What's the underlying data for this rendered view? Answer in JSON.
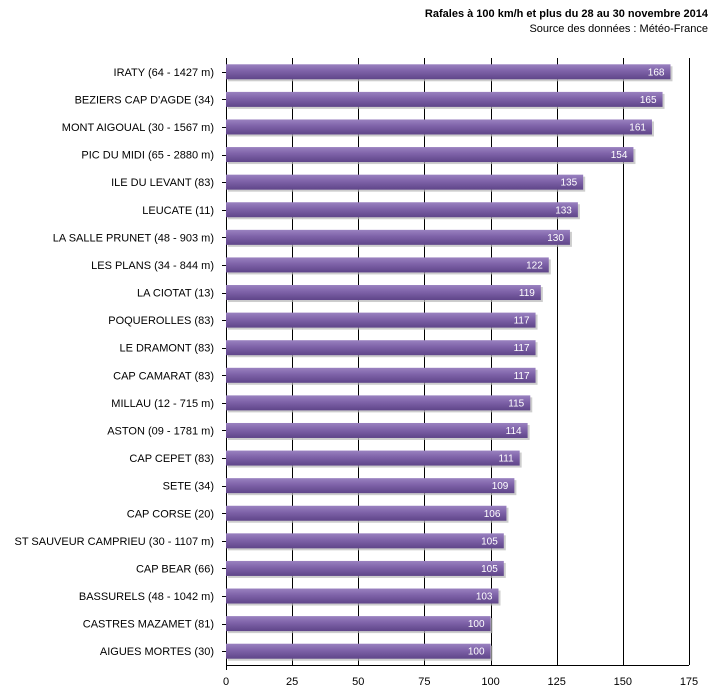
{
  "chart_data": {
    "type": "bar",
    "orientation": "horizontal",
    "title": "Rafales à 100 km/h et plus du 28 au 30 novembre 2014",
    "subtitle": "Source des données : Météo-France",
    "xlabel": "",
    "ylabel": "",
    "xlim": [
      0,
      175
    ],
    "ticks": [
      0,
      25,
      50,
      75,
      100,
      125,
      150,
      175
    ],
    "grid": true,
    "bar_color": "#7b5fa3",
    "categories": [
      "IRATY (64 - 1427 m)",
      "BEZIERS CAP D'AGDE (34)",
      "MONT AIGOUAL (30 - 1567 m)",
      "PIC DU MIDI (65 - 2880 m)",
      "ILE DU LEVANT (83)",
      "LEUCATE (11)",
      "LA SALLE PRUNET (48 - 903 m)",
      "LES PLANS (34 - 844 m)",
      "LA CIOTAT (13)",
      "POQUEROLLES (83)",
      "LE DRAMONT (83)",
      "CAP CAMARAT (83)",
      "MILLAU (12 - 715 m)",
      "ASTON (09 - 1781 m)",
      "CAP CEPET (83)",
      "SETE (34)",
      "CAP CORSE (20)",
      "ST SAUVEUR CAMPRIEU (30 - 1107 m)",
      "CAP BEAR (66)",
      "BASSURELS (48 - 1042 m)",
      "CASTRES MAZAMET (81)",
      "AIGUES MORTES (30)"
    ],
    "values": [
      168,
      165,
      161,
      154,
      135,
      133,
      130,
      122,
      119,
      117,
      117,
      117,
      115,
      114,
      111,
      109,
      106,
      105,
      105,
      103,
      100,
      100
    ]
  }
}
